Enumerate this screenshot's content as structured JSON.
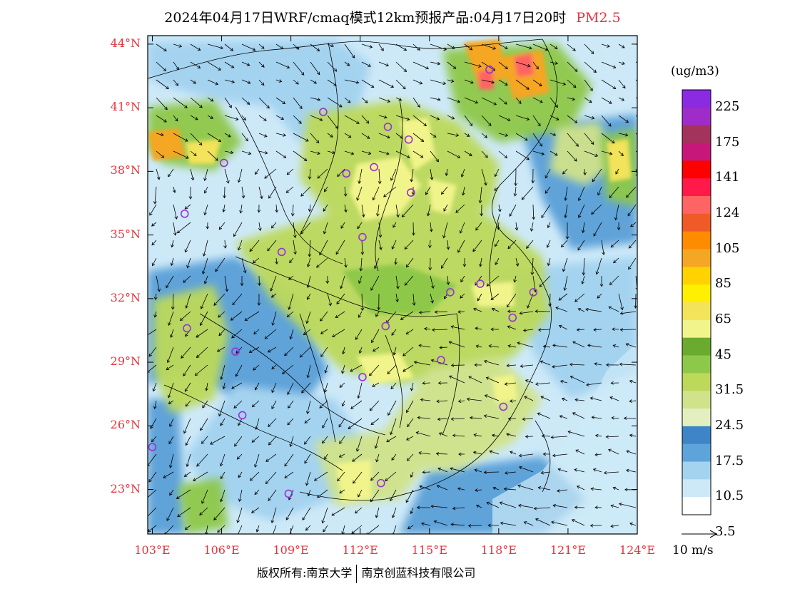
{
  "header": {
    "title": "2024年04月17日WRF/cmaq模式12km预报产品:04月17日20时",
    "species": "PM2.5"
  },
  "axes": {
    "lat_ticks": [
      "44°N",
      "41°N",
      "38°N",
      "35°N",
      "32°N",
      "29°N",
      "26°N",
      "23°N"
    ],
    "lat_values": [
      44,
      41,
      38,
      35,
      32,
      29,
      26,
      23
    ],
    "lon_ticks": [
      "103°E",
      "106°E",
      "109°E",
      "112°E",
      "115°E",
      "118°E",
      "121°E",
      "124°E"
    ],
    "lon_values": [
      103,
      106,
      109,
      112,
      115,
      118,
      121,
      124
    ],
    "lon_range": [
      102.8,
      124
    ],
    "lat_range": [
      20.9,
      44.4
    ]
  },
  "colorbar": {
    "unit": "(ug/m3)",
    "labels": [
      "225",
      "175",
      "141",
      "124",
      "105",
      "85",
      "65",
      "45",
      "31.5",
      "24.5",
      "17.5",
      "10.5",
      "3.5"
    ],
    "colors": [
      "#8a2be2",
      "#9f2cc8",
      "#a3335a",
      "#c8177a",
      "#ff0000",
      "#ff1a4a",
      "#ff6464",
      "#f05a28",
      "#ff8c00",
      "#f5a623",
      "#ffd200",
      "#ffef00",
      "#f2e35a",
      "#f1f48a",
      "#6aaa2f",
      "#8ec84a",
      "#bcd95a",
      "#d0e38a",
      "#e4efc0",
      "#3d85c6",
      "#5ea3d9",
      "#a4d3f0",
      "#cde9f8",
      "#ffffff"
    ]
  },
  "wind_scale": {
    "label": "10 m/s"
  },
  "stations": [
    {
      "lon": 117.6,
      "lat": 42.8
    },
    {
      "lon": 110.4,
      "lat": 40.8
    },
    {
      "lon": 113.2,
      "lat": 40.1
    },
    {
      "lon": 114.1,
      "lat": 39.5
    },
    {
      "lon": 106.1,
      "lat": 38.4
    },
    {
      "lon": 111.4,
      "lat": 37.9
    },
    {
      "lon": 112.6,
      "lat": 38.2
    },
    {
      "lon": 114.2,
      "lat": 37.0
    },
    {
      "lon": 104.4,
      "lat": 36.0
    },
    {
      "lon": 112.1,
      "lat": 34.9
    },
    {
      "lon": 108.6,
      "lat": 34.2
    },
    {
      "lon": 117.2,
      "lat": 32.7
    },
    {
      "lon": 115.9,
      "lat": 32.3
    },
    {
      "lon": 119.5,
      "lat": 32.3
    },
    {
      "lon": 118.6,
      "lat": 31.1
    },
    {
      "lon": 104.5,
      "lat": 30.6
    },
    {
      "lon": 113.1,
      "lat": 30.7
    },
    {
      "lon": 106.6,
      "lat": 29.5
    },
    {
      "lon": 115.5,
      "lat": 29.1
    },
    {
      "lon": 112.1,
      "lat": 28.3
    },
    {
      "lon": 106.9,
      "lat": 26.5
    },
    {
      "lon": 118.2,
      "lat": 26.9
    },
    {
      "lon": 103.0,
      "lat": 25.0
    },
    {
      "lon": 108.9,
      "lat": 22.8
    },
    {
      "lon": 112.9,
      "lat": 23.3
    }
  ],
  "footer": {
    "copyright_left": "版权所有:南京大学",
    "copyright_right": "南京创蓝科技有限公司"
  }
}
